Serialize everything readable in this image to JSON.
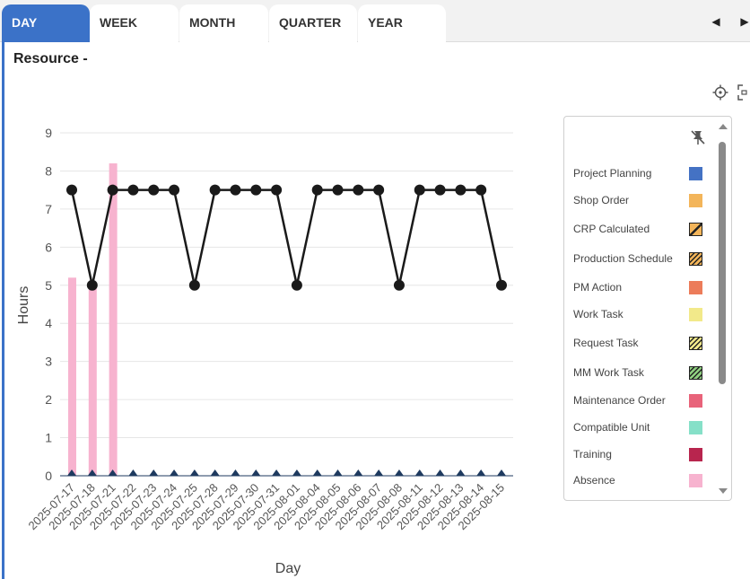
{
  "tabs": [
    {
      "label": "DAY",
      "active": true
    },
    {
      "label": "WEEK",
      "active": false
    },
    {
      "label": "MONTH",
      "active": false
    },
    {
      "label": "QUARTER",
      "active": false
    },
    {
      "label": "YEAR",
      "active": false
    }
  ],
  "nav": {
    "prev": "◀",
    "next": "▶"
  },
  "title": "Resource -",
  "toolbar": {
    "icons": [
      "crosshair-icon",
      "fullscreen-icon"
    ]
  },
  "colors": {
    "accent": "#3b72c8",
    "line": "#1a1a1a",
    "absence_bar": "#f7b3cf",
    "baseline_marker": "#1e3a5f",
    "grid": "#e6e6e6"
  },
  "chart_data": {
    "type": "bar",
    "xlabel": "Day",
    "ylabel": "Hours",
    "ylim": [
      0,
      9
    ],
    "yticks": [
      0,
      1,
      2,
      3,
      4,
      5,
      6,
      7,
      8,
      9
    ],
    "grid": true,
    "categories": [
      "2025-07-17",
      "2025-07-18",
      "2025-07-21",
      "2025-07-22",
      "2025-07-23",
      "2025-07-24",
      "2025-07-25",
      "2025-07-28",
      "2025-07-29",
      "2025-07-30",
      "2025-07-31",
      "2025-08-01",
      "2025-08-04",
      "2025-08-05",
      "2025-08-06",
      "2025-08-07",
      "2025-08-08",
      "2025-08-11",
      "2025-08-12",
      "2025-08-13",
      "2025-08-14",
      "2025-08-15"
    ],
    "series": [
      {
        "name": "Absence",
        "kind": "bar",
        "color": "#f7b3cf",
        "values": [
          5.2,
          5.0,
          8.2,
          0,
          0,
          0,
          0,
          0,
          0,
          0,
          0,
          0,
          0,
          0,
          0,
          0,
          0,
          0,
          0,
          0,
          0,
          0
        ]
      },
      {
        "kind": "line",
        "color": "#1a1a1a",
        "values": [
          7.5,
          5,
          7.5,
          7.5,
          7.5,
          7.5,
          5,
          7.5,
          7.5,
          7.5,
          7.5,
          5,
          7.5,
          7.5,
          7.5,
          7.5,
          5,
          7.5,
          7.5,
          7.5,
          7.5,
          5
        ]
      }
    ],
    "legend_position": "right"
  },
  "legend": {
    "pin_icon": "unpin-icon",
    "items": [
      {
        "label": "Project Planning",
        "color": "#4472c4",
        "pattern": "solid"
      },
      {
        "label": "Shop Order",
        "color": "#f3b55a",
        "pattern": "solid"
      },
      {
        "label": "CRP Calculated",
        "color": "#f3b55a",
        "pattern": "single-hatch"
      },
      {
        "label": "Production Schedule",
        "color": "#f3b55a",
        "pattern": "hatch"
      },
      {
        "label": "PM Action",
        "color": "#ec7c5a",
        "pattern": "solid"
      },
      {
        "label": "Work Task",
        "color": "#f2e98a",
        "pattern": "solid"
      },
      {
        "label": "Request Task",
        "color": "#f2e98a",
        "pattern": "hatch"
      },
      {
        "label": "MM Work Task",
        "color": "#8fd080",
        "pattern": "hatch"
      },
      {
        "label": "Maintenance Order",
        "color": "#e8637a",
        "pattern": "solid"
      },
      {
        "label": "Compatible Unit",
        "color": "#86e0c8",
        "pattern": "solid"
      },
      {
        "label": "Training",
        "color": "#b8254e",
        "pattern": "solid"
      },
      {
        "label": "Absence",
        "color": "#f7b3cf",
        "pattern": "solid"
      }
    ]
  }
}
